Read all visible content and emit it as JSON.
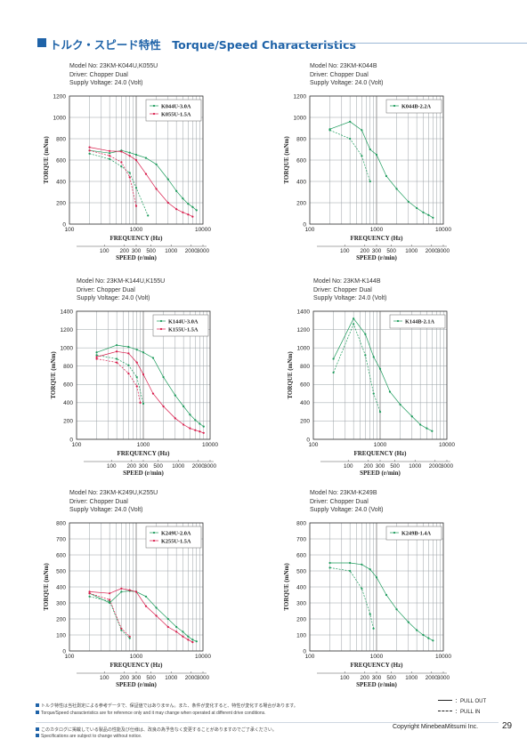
{
  "page": {
    "title": "トルク・スピード特性　Torque/Speed Characteristics",
    "notes_top": [
      "トルク特性は当社測定による参考データで、保証値ではありません。また、条件が変化すると、特性が変化する場合があります。",
      "Torque/Speed characteristics are for reference only and it may change when operated at different drive conditions."
    ],
    "notes_bottom": [
      "このカタログに掲載している製品の性能及び仕様は、改良の為予告なく変更することがありますのでご了承ください。",
      "Specifications are subject to change without notice."
    ],
    "legend_key": {
      "pull_out": "：PULL OUT",
      "pull_in": "：PULL IN"
    },
    "copyright": "Copyright MinebeaMitsumi Inc.",
    "page_number": "29"
  },
  "chart_data": [
    {
      "type": "line",
      "meta": [
        "Model No: 23KM-K044U,K055U",
        "Driver: Chopper Dual",
        "Supply Voltage: 24.0 (Volt)"
      ],
      "ylabel": "TORQUE (mNm)",
      "xlabel": "FREQUENCY (Hz)",
      "x2label": "SPEED (r/min)",
      "xscale": "log",
      "xlim": [
        100,
        10000
      ],
      "ylim": [
        0,
        1200
      ],
      "yticks": [
        0,
        200,
        400,
        600,
        800,
        1000,
        1200
      ],
      "xticklabels": [
        "100",
        "1000",
        "10000"
      ],
      "speed_ticks": [
        "100",
        "200",
        "300",
        "500",
        "1000",
        "2000",
        "3000"
      ],
      "legend": [
        "K044U-3.0A",
        "K055U-1.5A"
      ],
      "series": [
        {
          "name": "K044U-3.0A",
          "kind": "pull_out",
          "color": "#1a9a5a",
          "x": [
            200,
            400,
            600,
            800,
            1000,
            1400,
            2000,
            3000,
            4000,
            5000,
            6000,
            7000,
            8000
          ],
          "y": [
            690,
            665,
            690,
            670,
            650,
            620,
            560,
            420,
            310,
            240,
            190,
            160,
            130
          ]
        },
        {
          "name": "K044U-3.0A",
          "kind": "pull_in",
          "color": "#1a9a5a",
          "x": [
            200,
            400,
            600,
            800,
            1000,
            1500
          ],
          "y": [
            660,
            610,
            540,
            480,
            340,
            80
          ]
        },
        {
          "name": "K055U-1.5A",
          "kind": "pull_out",
          "color": "#d81b4a",
          "x": [
            200,
            400,
            600,
            800,
            1000,
            1400,
            2000,
            3000,
            4000,
            5000,
            6000,
            7000
          ],
          "y": [
            720,
            685,
            680,
            640,
            600,
            470,
            330,
            200,
            140,
            110,
            90,
            70
          ]
        },
        {
          "name": "K055U-1.5A",
          "kind": "pull_in",
          "color": "#d81b4a",
          "x": [
            200,
            400,
            600,
            800,
            1000
          ],
          "y": [
            690,
            640,
            580,
            440,
            170
          ]
        }
      ]
    },
    {
      "type": "line",
      "meta": [
        "Model No: 23KM-K044B",
        "Driver: Chopper Dual",
        "Supply Voltage: 24.0 (Volt)"
      ],
      "ylabel": "TORQUE (mNm)",
      "xlabel": "FREQUENCY (Hz)",
      "x2label": "SPEED (r/min)",
      "xscale": "log",
      "xlim": [
        100,
        10000
      ],
      "ylim": [
        0,
        1200
      ],
      "yticks": [
        0,
        200,
        400,
        600,
        800,
        1000,
        1200
      ],
      "xticklabels": [
        "100",
        "1000",
        "10000"
      ],
      "speed_ticks": [
        "100",
        "200",
        "300",
        "500",
        "1000",
        "2000",
        "3000"
      ],
      "legend": [
        "K044B-2.2A"
      ],
      "series": [
        {
          "name": "K044B-2.2A",
          "kind": "pull_out",
          "color": "#1a9a5a",
          "x": [
            200,
            400,
            600,
            800,
            1000,
            1400,
            2000,
            3000,
            4000,
            5000,
            6000,
            7000
          ],
          "y": [
            890,
            960,
            880,
            700,
            650,
            450,
            330,
            210,
            150,
            110,
            85,
            60
          ]
        },
        {
          "name": "K044B-2.2A",
          "kind": "pull_in",
          "color": "#1a9a5a",
          "x": [
            200,
            400,
            600,
            800
          ],
          "y": [
            880,
            800,
            640,
            400
          ]
        }
      ]
    },
    {
      "type": "line",
      "meta": [
        "Model No: 23KM-K144U,K155U",
        "Driver: Chopper Dual",
        "Supply Voltage: 24.0 (Volt)"
      ],
      "ylabel": "TORQUE (mNm)",
      "xlabel": "FREQUENCY (Hz)",
      "x2label": "SPEED (r/min)",
      "xscale": "log",
      "xlim": [
        100,
        10000
      ],
      "ylim": [
        0,
        1400
      ],
      "yticks": [
        0,
        200,
        400,
        600,
        800,
        1000,
        1200,
        1400
      ],
      "xticklabels": [
        "100",
        "1000",
        "10000"
      ],
      "speed_ticks": [
        "100",
        "200",
        "300",
        "500",
        "1000",
        "2000",
        "3000"
      ],
      "legend": [
        "K144U-3.0A",
        "K155U-1.5A"
      ],
      "series": [
        {
          "name": "K144U-3.0A",
          "kind": "pull_out",
          "color": "#1a9a5a",
          "x": [
            200,
            400,
            600,
            800,
            1000,
            1400,
            2000,
            3000,
            4000,
            5000,
            6000,
            7000,
            8000
          ],
          "y": [
            950,
            1030,
            1010,
            980,
            950,
            890,
            680,
            480,
            360,
            270,
            210,
            170,
            140
          ]
        },
        {
          "name": "K144U-3.0A",
          "kind": "pull_in",
          "color": "#1a9a5a",
          "x": [
            200,
            400,
            600,
            800,
            1000
          ],
          "y": [
            920,
            880,
            810,
            680,
            390
          ]
        },
        {
          "name": "K155U-1.5A",
          "kind": "pull_out",
          "color": "#d81b4a",
          "x": [
            200,
            400,
            600,
            800,
            1000,
            1400,
            2000,
            3000,
            4000,
            5000,
            6000,
            7000,
            8000
          ],
          "y": [
            900,
            960,
            940,
            840,
            710,
            500,
            360,
            230,
            160,
            120,
            100,
            85,
            70
          ]
        },
        {
          "name": "K155U-1.5A",
          "kind": "pull_in",
          "color": "#d81b4a",
          "x": [
            200,
            400,
            600,
            800,
            900
          ],
          "y": [
            880,
            840,
            720,
            580,
            400
          ]
        }
      ]
    },
    {
      "type": "line",
      "meta": [
        "Model No: 23KM-K144B",
        "Driver: Chopper Dual",
        "Supply Voltage: 24.0 (Volt)"
      ],
      "ylabel": "TORQUE (mNm)",
      "xlabel": "FREQUENCY (Hz)",
      "x2label": "SPEED (r/min)",
      "xscale": "log",
      "xlim": [
        100,
        10000
      ],
      "ylim": [
        0,
        1400
      ],
      "yticks": [
        0,
        200,
        400,
        600,
        800,
        1000,
        1200,
        1400
      ],
      "xticklabels": [
        "100",
        "1000",
        "10000"
      ],
      "speed_ticks": [
        "100",
        "200",
        "300",
        "500",
        "1000",
        "2000",
        "3000"
      ],
      "legend": [
        "K144B-2.1A"
      ],
      "series": [
        {
          "name": "K144B-2.1A",
          "kind": "pull_out",
          "color": "#1a9a5a",
          "x": [
            200,
            400,
            600,
            800,
            1000,
            1400,
            2000,
            3000,
            4000,
            5000,
            6000
          ],
          "y": [
            880,
            1320,
            1150,
            900,
            770,
            520,
            380,
            250,
            160,
            120,
            90
          ]
        },
        {
          "name": "K144B-2.1A",
          "kind": "pull_in",
          "color": "#1a9a5a",
          "x": [
            200,
            400,
            600,
            800,
            1000
          ],
          "y": [
            730,
            1260,
            920,
            500,
            300
          ]
        }
      ]
    },
    {
      "type": "line",
      "meta": [
        "Model No: 23KM-K249U,K255U",
        "Driver: Chopper Dual",
        "Supply Voltage: 24.0 (Volt)"
      ],
      "ylabel": "TORQUE (mNm)",
      "xlabel": "FREQUENCY (Hz)",
      "x2label": "SPEED (r/min)",
      "xscale": "log",
      "xlim": [
        100,
        10000
      ],
      "ylim": [
        0,
        800
      ],
      "yticks": [
        0,
        100,
        200,
        300,
        400,
        500,
        600,
        700,
        800
      ],
      "xticklabels": [
        "100",
        "1000",
        "10000"
      ],
      "speed_ticks": [
        "100",
        "200",
        "300",
        "500",
        "1000",
        "2000",
        "3000"
      ],
      "legend": [
        "K249U-2.0A",
        "K255U-1.5A"
      ],
      "series": [
        {
          "name": "K249U-2.0A",
          "kind": "pull_out",
          "color": "#1a9a5a",
          "x": [
            200,
            400,
            600,
            800,
            1000,
            1400,
            2000,
            3000,
            4000,
            5000,
            6000,
            7000,
            8000
          ],
          "y": [
            360,
            300,
            370,
            375,
            370,
            340,
            270,
            200,
            150,
            120,
            90,
            70,
            60
          ]
        },
        {
          "name": "K249U-2.0A",
          "kind": "pull_in",
          "color": "#1a9a5a",
          "x": [
            200,
            400,
            600,
            800
          ],
          "y": [
            340,
            310,
            130,
            80
          ]
        },
        {
          "name": "K255U-1.5A",
          "kind": "pull_out",
          "color": "#d81b4a",
          "x": [
            200,
            400,
            600,
            800,
            1000,
            1400,
            2000,
            3000,
            4000,
            5000,
            6000,
            7000
          ],
          "y": [
            370,
            360,
            390,
            380,
            370,
            280,
            220,
            150,
            120,
            90,
            70,
            55
          ]
        },
        {
          "name": "K255U-1.5A",
          "kind": "pull_in",
          "color": "#d81b4a",
          "x": [
            200,
            400,
            600,
            800
          ],
          "y": [
            360,
            320,
            140,
            90
          ]
        }
      ]
    },
    {
      "type": "line",
      "meta": [
        "Model No: 23KM-K249B",
        "Driver: Chopper Dual",
        "Supply Voltage: 24.0 (Volt)"
      ],
      "ylabel": "TORQUE (mNm)",
      "xlabel": "FREQUENCY (Hz)",
      "x2label": "SPEED (r/min)",
      "xscale": "log",
      "xlim": [
        100,
        10000
      ],
      "ylim": [
        0,
        800
      ],
      "yticks": [
        0,
        100,
        200,
        300,
        400,
        500,
        600,
        700,
        800
      ],
      "xticklabels": [
        "100",
        "1000",
        "10000"
      ],
      "speed_ticks": [
        "100",
        "200",
        "300",
        "500",
        "1000",
        "2000",
        "3000"
      ],
      "legend": [
        "K249B-1.4A"
      ],
      "series": [
        {
          "name": "K249B-1.4A",
          "kind": "pull_out",
          "color": "#1a9a5a",
          "x": [
            200,
            400,
            600,
            800,
            1000,
            1400,
            2000,
            3000,
            4000,
            5000,
            6000,
            7000
          ],
          "y": [
            550,
            550,
            540,
            510,
            460,
            350,
            260,
            180,
            130,
            100,
            80,
            65
          ]
        },
        {
          "name": "K249B-1.4A",
          "kind": "pull_in",
          "color": "#1a9a5a",
          "x": [
            200,
            400,
            600,
            800,
            900
          ],
          "y": [
            520,
            500,
            390,
            230,
            140
          ]
        }
      ]
    }
  ]
}
